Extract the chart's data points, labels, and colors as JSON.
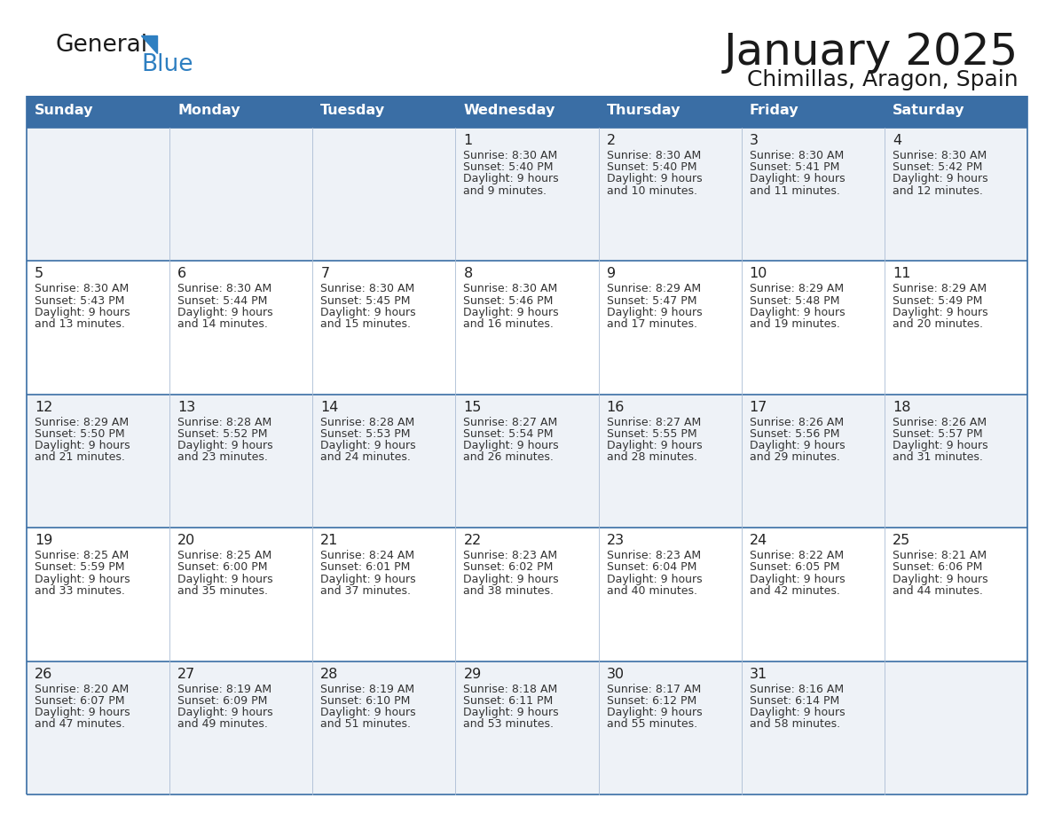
{
  "title": "January 2025",
  "subtitle": "Chimillas, Aragon, Spain",
  "header_color": "#3a6ea5",
  "header_text_color": "#ffffff",
  "row_bg_odd": "#eef2f7",
  "row_bg_even": "#ffffff",
  "text_color": "#333333",
  "line_color": "#3a6ea5",
  "days_of_week": [
    "Sunday",
    "Monday",
    "Tuesday",
    "Wednesday",
    "Thursday",
    "Friday",
    "Saturday"
  ],
  "logo_general_color": "#1a1a1a",
  "logo_blue_color": "#2e7fc1",
  "calendar": [
    [
      null,
      null,
      null,
      {
        "day": 1,
        "sunrise": "8:30 AM",
        "sunset": "5:40 PM",
        "daylight": "9 hours and 9 minutes."
      },
      {
        "day": 2,
        "sunrise": "8:30 AM",
        "sunset": "5:40 PM",
        "daylight": "9 hours and 10 minutes."
      },
      {
        "day": 3,
        "sunrise": "8:30 AM",
        "sunset": "5:41 PM",
        "daylight": "9 hours and 11 minutes."
      },
      {
        "day": 4,
        "sunrise": "8:30 AM",
        "sunset": "5:42 PM",
        "daylight": "9 hours and 12 minutes."
      }
    ],
    [
      {
        "day": 5,
        "sunrise": "8:30 AM",
        "sunset": "5:43 PM",
        "daylight": "9 hours and 13 minutes."
      },
      {
        "day": 6,
        "sunrise": "8:30 AM",
        "sunset": "5:44 PM",
        "daylight": "9 hours and 14 minutes."
      },
      {
        "day": 7,
        "sunrise": "8:30 AM",
        "sunset": "5:45 PM",
        "daylight": "9 hours and 15 minutes."
      },
      {
        "day": 8,
        "sunrise": "8:30 AM",
        "sunset": "5:46 PM",
        "daylight": "9 hours and 16 minutes."
      },
      {
        "day": 9,
        "sunrise": "8:29 AM",
        "sunset": "5:47 PM",
        "daylight": "9 hours and 17 minutes."
      },
      {
        "day": 10,
        "sunrise": "8:29 AM",
        "sunset": "5:48 PM",
        "daylight": "9 hours and 19 minutes."
      },
      {
        "day": 11,
        "sunrise": "8:29 AM",
        "sunset": "5:49 PM",
        "daylight": "9 hours and 20 minutes."
      }
    ],
    [
      {
        "day": 12,
        "sunrise": "8:29 AM",
        "sunset": "5:50 PM",
        "daylight": "9 hours and 21 minutes."
      },
      {
        "day": 13,
        "sunrise": "8:28 AM",
        "sunset": "5:52 PM",
        "daylight": "9 hours and 23 minutes."
      },
      {
        "day": 14,
        "sunrise": "8:28 AM",
        "sunset": "5:53 PM",
        "daylight": "9 hours and 24 minutes."
      },
      {
        "day": 15,
        "sunrise": "8:27 AM",
        "sunset": "5:54 PM",
        "daylight": "9 hours and 26 minutes."
      },
      {
        "day": 16,
        "sunrise": "8:27 AM",
        "sunset": "5:55 PM",
        "daylight": "9 hours and 28 minutes."
      },
      {
        "day": 17,
        "sunrise": "8:26 AM",
        "sunset": "5:56 PM",
        "daylight": "9 hours and 29 minutes."
      },
      {
        "day": 18,
        "sunrise": "8:26 AM",
        "sunset": "5:57 PM",
        "daylight": "9 hours and 31 minutes."
      }
    ],
    [
      {
        "day": 19,
        "sunrise": "8:25 AM",
        "sunset": "5:59 PM",
        "daylight": "9 hours and 33 minutes."
      },
      {
        "day": 20,
        "sunrise": "8:25 AM",
        "sunset": "6:00 PM",
        "daylight": "9 hours and 35 minutes."
      },
      {
        "day": 21,
        "sunrise": "8:24 AM",
        "sunset": "6:01 PM",
        "daylight": "9 hours and 37 minutes."
      },
      {
        "day": 22,
        "sunrise": "8:23 AM",
        "sunset": "6:02 PM",
        "daylight": "9 hours and 38 minutes."
      },
      {
        "day": 23,
        "sunrise": "8:23 AM",
        "sunset": "6:04 PM",
        "daylight": "9 hours and 40 minutes."
      },
      {
        "day": 24,
        "sunrise": "8:22 AM",
        "sunset": "6:05 PM",
        "daylight": "9 hours and 42 minutes."
      },
      {
        "day": 25,
        "sunrise": "8:21 AM",
        "sunset": "6:06 PM",
        "daylight": "9 hours and 44 minutes."
      }
    ],
    [
      {
        "day": 26,
        "sunrise": "8:20 AM",
        "sunset": "6:07 PM",
        "daylight": "9 hours and 47 minutes."
      },
      {
        "day": 27,
        "sunrise": "8:19 AM",
        "sunset": "6:09 PM",
        "daylight": "9 hours and 49 minutes."
      },
      {
        "day": 28,
        "sunrise": "8:19 AM",
        "sunset": "6:10 PM",
        "daylight": "9 hours and 51 minutes."
      },
      {
        "day": 29,
        "sunrise": "8:18 AM",
        "sunset": "6:11 PM",
        "daylight": "9 hours and 53 minutes."
      },
      {
        "day": 30,
        "sunrise": "8:17 AM",
        "sunset": "6:12 PM",
        "daylight": "9 hours and 55 minutes."
      },
      {
        "day": 31,
        "sunrise": "8:16 AM",
        "sunset": "6:14 PM",
        "daylight": "9 hours and 58 minutes."
      },
      null
    ]
  ]
}
